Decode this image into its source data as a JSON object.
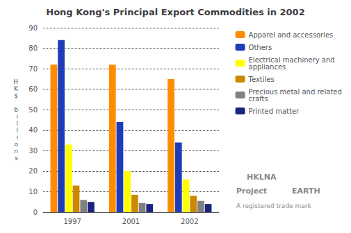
{
  "chart_data": {
    "type": "bar",
    "title": "Hong Kong's Principal Export Commodities in 2002",
    "ylabel": "H\nK\n$\n \nb\ni\nl\nl\ni\no\nn\ns",
    "categories": [
      "1997",
      "2001",
      "2002"
    ],
    "series": [
      {
        "name": "Apparel and accessories",
        "color": "#FF8C00",
        "values": [
          72,
          72,
          65
        ]
      },
      {
        "name": "Others",
        "color": "#1E3CB8",
        "values": [
          84,
          44,
          34
        ]
      },
      {
        "name": "Electrical machinery and appliances",
        "color": "#FFFF00",
        "values": [
          33,
          20,
          16
        ]
      },
      {
        "name": "Textiles",
        "color": "#CC8800",
        "values": [
          13,
          8.5,
          8
        ]
      },
      {
        "name": "Precious metal and related crafts",
        "color": "#808080",
        "values": [
          6,
          4.5,
          5.5
        ]
      },
      {
        "name": "Printed matter",
        "color": "#1A237E",
        "values": [
          5,
          4,
          4
        ]
      }
    ],
    "ylim": [
      0,
      90
    ],
    "yticks": [
      0,
      10,
      20,
      30,
      40,
      50,
      60,
      70,
      80,
      90
    ],
    "grid": true,
    "legend": "right",
    "annotations": [
      "HKLNA",
      "Project",
      "EARTH",
      "A registered trade mark"
    ]
  }
}
